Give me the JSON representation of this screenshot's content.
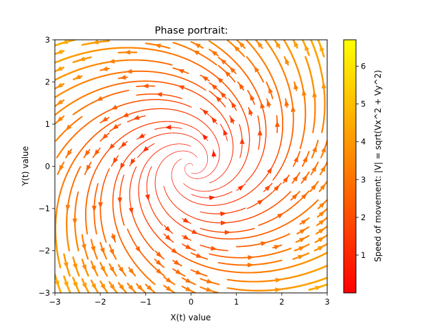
{
  "chart_data": {
    "type": "streamplot",
    "title": "Phase portrait:",
    "xlabel": "X(t) value",
    "ylabel": "Y(t) value",
    "xlim": [
      -3,
      3
    ],
    "ylim": [
      -3,
      3
    ],
    "xticks": [
      -3,
      -2,
      -1,
      0,
      1,
      2,
      3
    ],
    "yticks": [
      -3,
      -2,
      -1,
      0,
      1,
      2,
      3
    ],
    "xtick_labels": [
      "−3",
      "−2",
      "−1",
      "0",
      "1",
      "2",
      "3"
    ],
    "ytick_labels": [
      "−3",
      "−2",
      "−1",
      "0",
      "1",
      "2",
      "3"
    ],
    "grid": false,
    "field": {
      "description": "linear spiral source",
      "vx": {
        "x": 0.5,
        "y": -1.0
      },
      "vy": {
        "x": 1.0,
        "y": 0.5
      }
    },
    "colorbar": {
      "label": "Speed of movement: |V| = sqrt(Vx^2 + Vy^2)",
      "min": 0.0,
      "max": 6.7,
      "ticks": [
        1,
        2,
        3,
        4,
        5,
        6
      ],
      "tick_labels": [
        "1",
        "2",
        "3",
        "4",
        "5",
        "6"
      ],
      "colormap": "autumn",
      "color_low": "#ff0000",
      "color_high": "#ffff00"
    }
  }
}
